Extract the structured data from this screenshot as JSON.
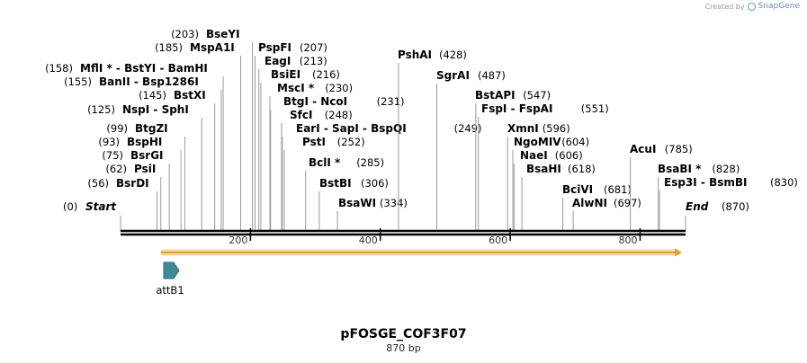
{
  "credit": {
    "prefix": "Created by",
    "brand": "SnapGene"
  },
  "plasmid": {
    "name": "pFOSGE_COF3F07",
    "size_label": "870 bp",
    "length": 870
  },
  "ends": {
    "start": {
      "pos": 0,
      "label": "Start"
    },
    "end": {
      "pos": 870,
      "label": "End"
    }
  },
  "ruler": {
    "ticks": [
      200,
      400,
      600,
      800
    ]
  },
  "feature": {
    "name": "attB1",
    "color": "#3f8b9a",
    "arrow_color": "#e2a33a"
  },
  "sites": [
    {
      "pos": 56,
      "names": [
        "BsrDI"
      ]
    },
    {
      "pos": 62,
      "names": [
        "PsiI"
      ]
    },
    {
      "pos": 75,
      "names": [
        "BsrGI"
      ]
    },
    {
      "pos": 93,
      "names": [
        "BspHI"
      ]
    },
    {
      "pos": 99,
      "names": [
        "BtgZI"
      ]
    },
    {
      "pos": 125,
      "names": [
        "NspI",
        "SphI"
      ]
    },
    {
      "pos": 145,
      "names": [
        "BstXI"
      ]
    },
    {
      "pos": 155,
      "names": [
        "BanII",
        "Bsp1286I"
      ]
    },
    {
      "pos": 158,
      "names": [
        "MflI *",
        "BstYI",
        "BamHI"
      ]
    },
    {
      "pos": 185,
      "names": [
        "MspA1I"
      ]
    },
    {
      "pos": 203,
      "names": [
        "BseYI"
      ]
    },
    {
      "pos": 207,
      "names": [
        "PspFI"
      ]
    },
    {
      "pos": 213,
      "names": [
        "EagI"
      ]
    },
    {
      "pos": 216,
      "names": [
        "BsiEI"
      ]
    },
    {
      "pos": 230,
      "names": [
        "MscI *"
      ]
    },
    {
      "pos": 231,
      "names": [
        "BtgI",
        "NcoI"
      ]
    },
    {
      "pos": 248,
      "names": [
        "SfcI"
      ]
    },
    {
      "pos": 249,
      "names": [
        "EarI",
        "SapI",
        "BspQI"
      ]
    },
    {
      "pos": 252,
      "names": [
        "PstI"
      ]
    },
    {
      "pos": 285,
      "names": [
        "BclI *"
      ]
    },
    {
      "pos": 306,
      "names": [
        "BstBI"
      ]
    },
    {
      "pos": 334,
      "names": [
        "BsaWI"
      ]
    },
    {
      "pos": 428,
      "names": [
        "PshAI"
      ]
    },
    {
      "pos": 487,
      "names": [
        "SgrAI"
      ]
    },
    {
      "pos": 547,
      "names": [
        "BstAPI"
      ]
    },
    {
      "pos": 551,
      "names": [
        "FspI",
        "FspAI"
      ]
    },
    {
      "pos": 596,
      "names": [
        "XmnI"
      ]
    },
    {
      "pos": 604,
      "names": [
        "NgoMIV"
      ]
    },
    {
      "pos": 606,
      "names": [
        "NaeI"
      ]
    },
    {
      "pos": 618,
      "names": [
        "BsaHI"
      ]
    },
    {
      "pos": 681,
      "names": [
        "BciVI"
      ]
    },
    {
      "pos": 697,
      "names": [
        "AlwNI"
      ]
    },
    {
      "pos": 785,
      "names": [
        "AcuI"
      ]
    },
    {
      "pos": 828,
      "names": [
        "BsaBI *"
      ]
    },
    {
      "pos": 830,
      "names": [
        "Esp3I",
        "BsmBI"
      ]
    }
  ]
}
